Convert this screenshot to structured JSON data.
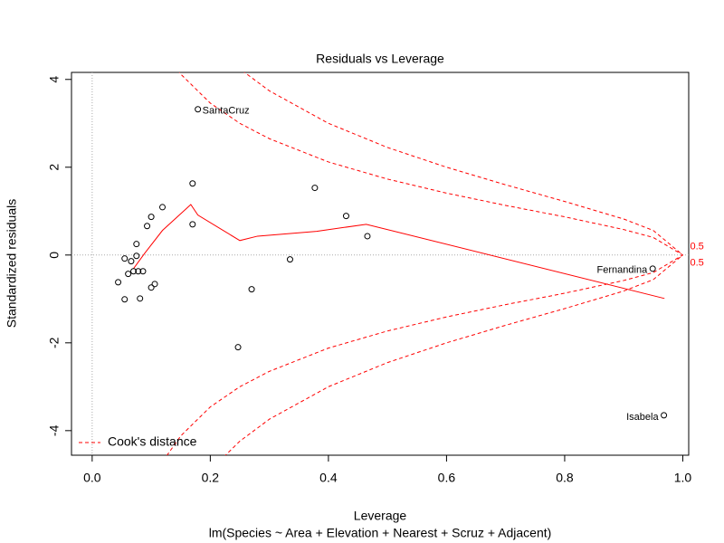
{
  "chart_data": {
    "type": "scatter",
    "title": "Residuals vs Leverage",
    "xlabel": "Leverage",
    "ylabel": "Standardized residuals",
    "subtitle": "lm(Species ~ Area + Elevation + Nearest + Scruz + Adjacent)",
    "xlim": [
      -0.035,
      1.01
    ],
    "ylim": [
      -4.56,
      4.16
    ],
    "xticks": [
      {
        "value": 0,
        "label": "0.0"
      },
      {
        "value": 0.2,
        "label": "0.2"
      },
      {
        "value": 0.4,
        "label": "0.4"
      },
      {
        "value": 0.6,
        "label": "0.6"
      },
      {
        "value": 0.8,
        "label": "0.8"
      },
      {
        "value": 1,
        "label": "1.0"
      }
    ],
    "yticks": [
      -4,
      -2,
      0,
      2,
      4
    ],
    "reference_lines": {
      "x": 0,
      "y": 0
    },
    "points": {
      "color": "#000000",
      "x": [
        0.179,
        0.17,
        0.377,
        0.119,
        0.1,
        0.43,
        0.093,
        0.17,
        0.466,
        0.075,
        0.055,
        0.075,
        0.066,
        0.335,
        0.044,
        0.061,
        0.07,
        0.078,
        0.086,
        0.106,
        0.1,
        0.27,
        0.055,
        0.081,
        0.247,
        0.949,
        0.968
      ],
      "y": [
        3.32,
        1.63,
        1.53,
        1.09,
        0.87,
        0.89,
        0.66,
        0.7,
        0.43,
        0.25,
        -0.08,
        -0.02,
        -0.14,
        -0.1,
        -0.62,
        -0.43,
        -0.37,
        -0.37,
        -0.37,
        -0.66,
        -0.74,
        -0.78,
        -1.01,
        -0.99,
        -2.1,
        -0.31,
        -3.65
      ]
    },
    "point_labels": [
      {
        "index": 0,
        "text": "SantaCruz"
      },
      {
        "index": 25,
        "text": "Fernandina"
      },
      {
        "index": 26,
        "text": "Isabela"
      }
    ],
    "smooth": {
      "color": "#ff0000",
      "x": [
        0.07,
        0.089,
        0.119,
        0.167,
        0.179,
        0.25,
        0.28,
        0.38,
        0.464,
        0.969
      ],
      "y": [
        -0.31,
        0.04,
        0.56,
        1.15,
        0.91,
        0.33,
        0.43,
        0.54,
        0.7,
        -0.99
      ]
    },
    "cooks": [
      {
        "color": "#ff0000",
        "label": "0.5",
        "x": [
          0.12,
          0.15,
          0.2,
          0.25,
          0.3,
          0.4,
          0.5,
          0.6,
          0.7,
          0.8,
          0.9,
          0.95,
          1.0
        ],
        "y": [
          4.69,
          4.12,
          3.46,
          3.0,
          2.65,
          2.12,
          1.73,
          1.41,
          1.13,
          0.87,
          0.58,
          0.4,
          0
        ]
      },
      {
        "color": "#ff0000",
        "label": "0.5",
        "x": [
          0.12,
          0.15,
          0.2,
          0.25,
          0.3,
          0.4,
          0.5,
          0.6,
          0.7,
          0.8,
          0.9,
          0.95,
          1.0
        ],
        "y": [
          -4.69,
          -4.12,
          -3.46,
          -3.0,
          -2.65,
          -2.12,
          -1.73,
          -1.41,
          -1.13,
          -0.87,
          -0.58,
          -0.4,
          0
        ]
      },
      {
        "color": "#ff0000",
        "x": [
          0.2,
          0.25,
          0.3,
          0.4,
          0.5,
          0.6,
          0.7,
          0.8,
          0.9,
          0.95,
          1.0
        ],
        "y": [
          4.9,
          4.24,
          3.74,
          3.0,
          2.45,
          2.0,
          1.6,
          1.22,
          0.82,
          0.56,
          0
        ]
      },
      {
        "color": "#ff0000",
        "x": [
          0.2,
          0.25,
          0.3,
          0.4,
          0.5,
          0.6,
          0.7,
          0.8,
          0.9,
          0.95,
          1.0
        ],
        "y": [
          -4.9,
          -4.24,
          -3.74,
          -3.0,
          -2.45,
          -2.0,
          -1.6,
          -1.22,
          -0.82,
          -0.56,
          0
        ]
      }
    ],
    "legend": {
      "label": "Cook's distance",
      "position": "bottom-left",
      "color": "#ff0000"
    }
  }
}
